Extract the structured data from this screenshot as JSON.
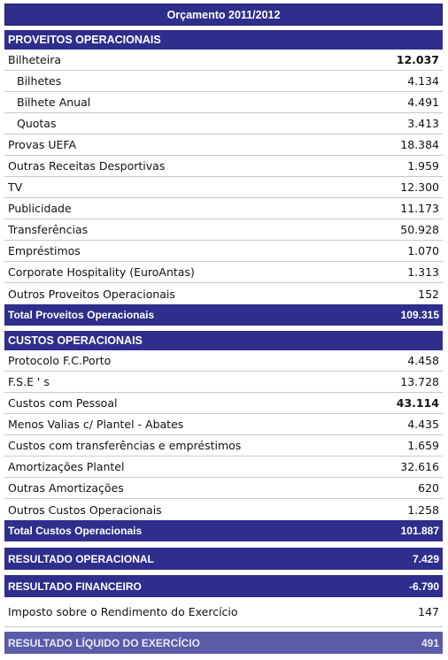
{
  "title": "Orçamento 2011/2012",
  "proveitos": {
    "header": "PROVEITOS OPERACIONAIS",
    "rows": [
      {
        "label": "Bilheteira",
        "value": "12.037"
      },
      {
        "label": "Bilhetes",
        "value": "4.134"
      },
      {
        "label": "Bilhete Anual",
        "value": "4.491"
      },
      {
        "label": "Quotas",
        "value": "3.413"
      },
      {
        "label": "Provas UEFA",
        "value": "18.384"
      },
      {
        "label": "Outras Receitas Desportivas",
        "value": "1.959"
      },
      {
        "label": "TV",
        "value": "12.300"
      },
      {
        "label": "Publicidade",
        "value": "11.173"
      },
      {
        "label": "Transferências",
        "value": "50.928"
      },
      {
        "label": "Empréstimos",
        "value": "1.070"
      },
      {
        "label": "Corporate Hospitality (EuroAntas)",
        "value": "1.313"
      },
      {
        "label": "Outros Proveitos Operacionais",
        "value": "152"
      }
    ],
    "total_label": "Total Proveitos Operacionais",
    "total_value": "109.315"
  },
  "custos": {
    "header": "CUSTOS OPERACIONAIS",
    "rows": [
      {
        "label": "Protocolo F.C.Porto",
        "value": "4.458"
      },
      {
        "label": "F.S.E ' s",
        "value": "13.728"
      },
      {
        "label": "Custos com Pessoal",
        "value": "43.114"
      },
      {
        "label": "Menos Valias c/ Plantel - Abates",
        "value": "4.435"
      },
      {
        "label": "Custos com transferências e empréstimos",
        "value": "1.659"
      },
      {
        "label": "Amortizações Plantel",
        "value": "32.616"
      },
      {
        "label": "Outras Amortizações",
        "value": "620"
      },
      {
        "label": "Outros Custos Operacionais",
        "value": "1.258"
      }
    ],
    "total_label": "Total Custos Operacionais",
    "total_value": "101.887"
  },
  "resultado_operacional": {
    "label": "RESULTADO OPERACIONAL",
    "value": "7.429"
  },
  "resultado_financeiro": {
    "label": "RESULTADO FINANCEIRO",
    "value": "-6.790"
  },
  "imposto": {
    "label": "Imposto sobre o Rendimento do Exercício",
    "value": "147"
  },
  "resultado_liquido": {
    "label": "RESULTADO LÍQUIDO DO EXERCÍCIO",
    "value": "491"
  },
  "colors": {
    "header_bg": "#2e2e8c",
    "header_text": "#ffffff"
  }
}
